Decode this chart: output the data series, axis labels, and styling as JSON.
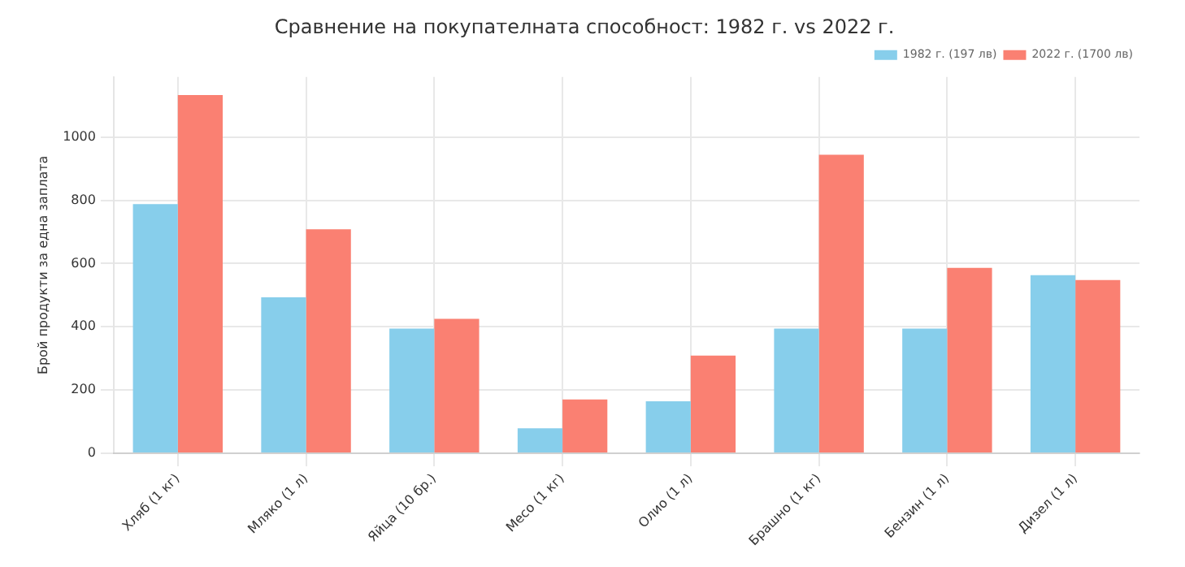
{
  "chart_data": {
    "type": "bar",
    "title": "Сравнение на покупателната способност: 1982 г. vs 2022 г.",
    "ylabel": "Брой продукти за една заплата",
    "categories": [
      "Хляб (1 кг)",
      "Мляко (1 л)",
      "Яйца (10 бр.)",
      "Месо (1 кг)",
      "Олио (1 л)",
      "Брашно (1 кг)",
      "Бензин (1 л)",
      "Дизел (1 л)"
    ],
    "series": [
      {
        "name": "1982 г. (197 лв)",
        "color": "#87ceeb",
        "values": [
          788,
          493,
          394,
          79,
          164,
          394,
          394,
          563
        ]
      },
      {
        "name": "2022 г. (1700 лв)",
        "color": "#fa8072",
        "values": [
          1133,
          708,
          425,
          170,
          309,
          944,
          586,
          548
        ]
      }
    ],
    "ylim": [
      0,
      1190
    ],
    "yticks": [
      0,
      200,
      400,
      600,
      800,
      1000
    ],
    "grid": true,
    "legend": "top right"
  }
}
